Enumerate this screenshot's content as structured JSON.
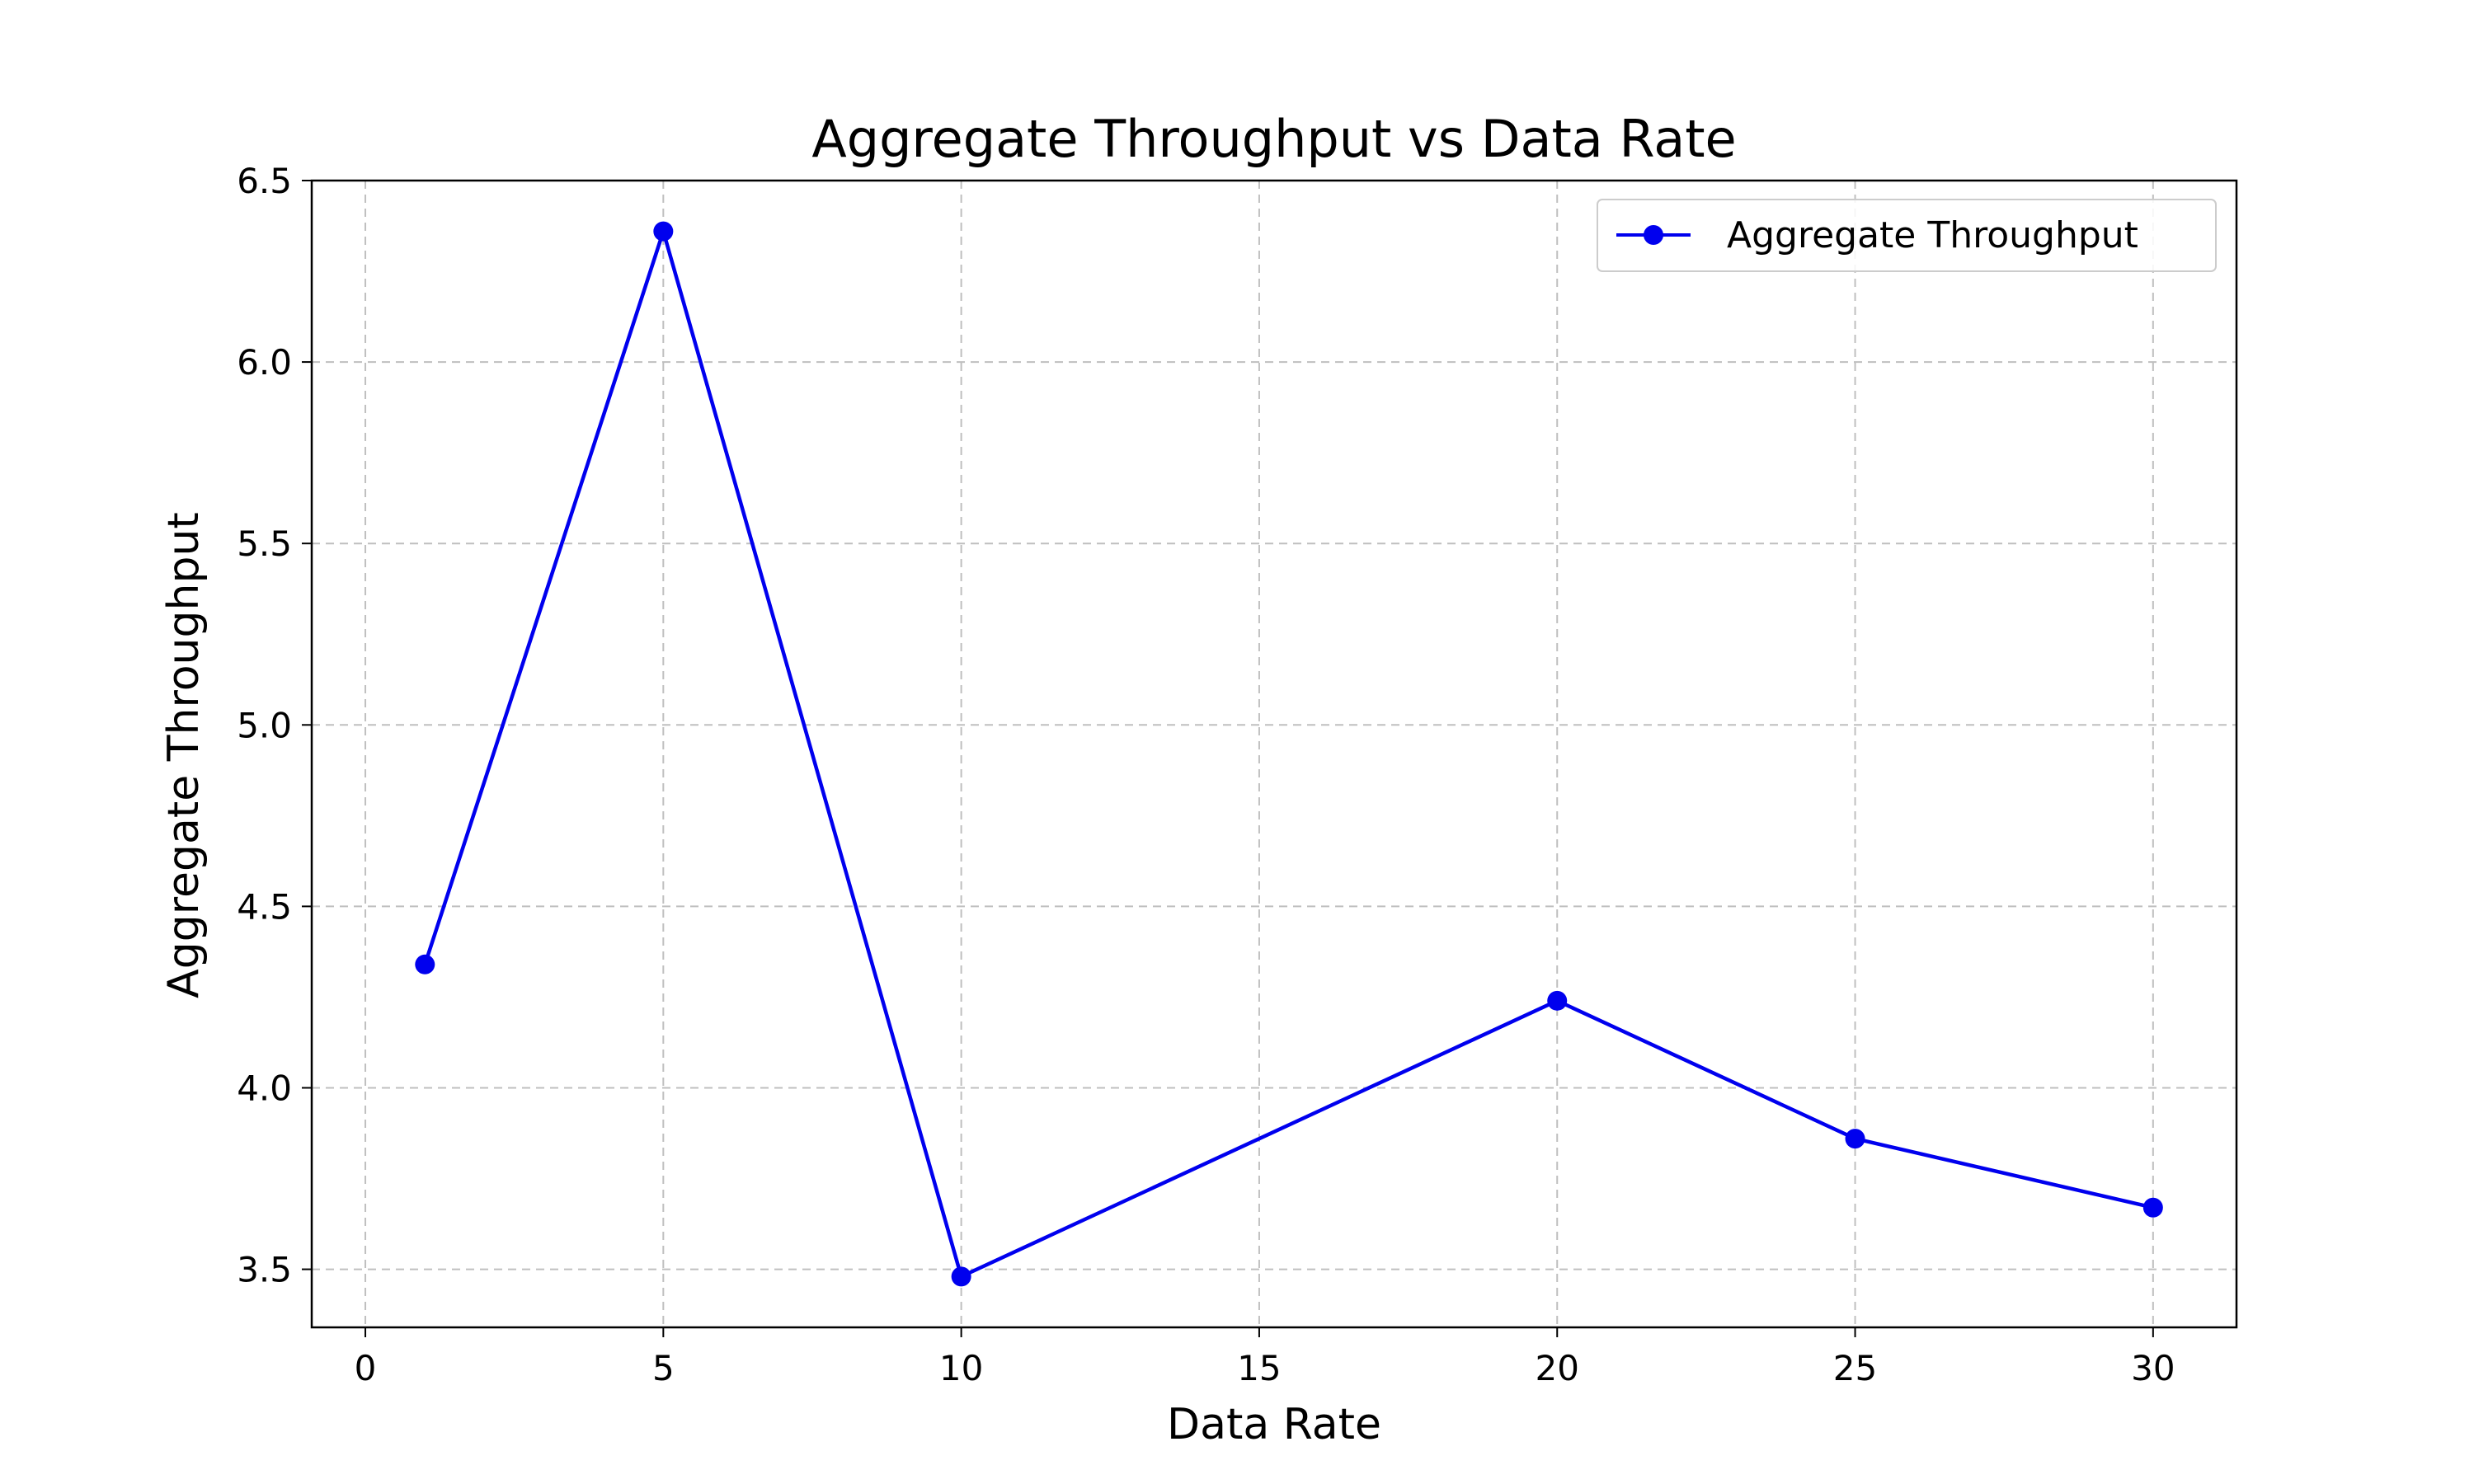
{
  "chart_data": {
    "type": "line",
    "title": "Aggregate Throughput vs Data Rate",
    "xlabel": "Data Rate",
    "ylabel": "Aggregate Throughput",
    "xlim": [
      -0.9,
      31.4
    ],
    "ylim": [
      3.34,
      6.5
    ],
    "xticks": [
      0,
      5,
      10,
      15,
      20,
      25,
      30
    ],
    "yticks": [
      3.5,
      4.0,
      4.5,
      5.0,
      5.5,
      6.0,
      6.5
    ],
    "grid": true,
    "legend_position": "top-right",
    "series": [
      {
        "name": "Aggregate Throughput",
        "color": "#0000ee",
        "marker": "circle",
        "x": [
          1,
          5,
          10,
          20,
          25,
          30
        ],
        "y": [
          4.34,
          6.36,
          3.48,
          4.24,
          3.86,
          3.67
        ]
      }
    ]
  }
}
